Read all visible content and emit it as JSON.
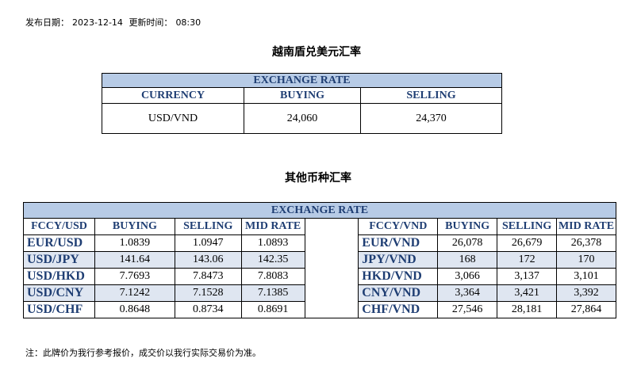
{
  "meta": {
    "publish_label": "发布日期：",
    "publish_date": "2023-12-14",
    "update_label": "更新时间：",
    "update_time": "08:30"
  },
  "table1": {
    "heading": "越南盾兑美元汇率",
    "band": "EXCHANGE RATE",
    "col_currency": "CURRENCY",
    "col_buying": "BUYING",
    "col_selling": "SELLING",
    "row": {
      "currency": "USD/VND",
      "buying": "24,060",
      "selling": "24,370"
    }
  },
  "table2": {
    "heading": "其他币种汇率",
    "band": "EXCHANGE  RATE",
    "left_headers": [
      "FCCY/USD",
      "BUYING",
      "SELLING",
      "MID RATE"
    ],
    "right_headers": [
      "FCCY/VND",
      "BUYING",
      "SELLING",
      "MID RATE"
    ],
    "rows": [
      {
        "l_pair": "EUR/USD",
        "l_buy": "1.0839",
        "l_sell": "1.0947",
        "l_mid": "1.0893",
        "r_pair": "EUR/VND",
        "r_buy": "26,078",
        "r_sell": "26,679",
        "r_mid": "26,378"
      },
      {
        "l_pair": "USD/JPY",
        "l_buy": "141.64",
        "l_sell": "143.06",
        "l_mid": "142.35",
        "r_pair": "JPY/VND",
        "r_buy": "168",
        "r_sell": "172",
        "r_mid": "170"
      },
      {
        "l_pair": "USD/HKD",
        "l_buy": "7.7693",
        "l_sell": "7.8473",
        "l_mid": "7.8083",
        "r_pair": "HKD/VND",
        "r_buy": "3,066",
        "r_sell": "3,137",
        "r_mid": "3,101"
      },
      {
        "l_pair": "USD/CNY",
        "l_buy": "7.1242",
        "l_sell": "7.1528",
        "l_mid": "7.1385",
        "r_pair": "CNY/VND",
        "r_buy": "3,364",
        "r_sell": "3,421",
        "r_mid": "3,392"
      },
      {
        "l_pair": "USD/CHF",
        "l_buy": "0.8648",
        "l_sell": "0.8734",
        "l_mid": "0.8691",
        "r_pair": "CHF/VND",
        "r_buy": "27,546",
        "r_sell": "28,181",
        "r_mid": "27,864"
      }
    ]
  },
  "note": "注：此牌价为我行参考报价，成交价以我行实际交易价为准。",
  "colors": {
    "band_bg": "#b7cbe6",
    "row_shade": "#dfe6f1",
    "header_text": "#1f3e73"
  }
}
